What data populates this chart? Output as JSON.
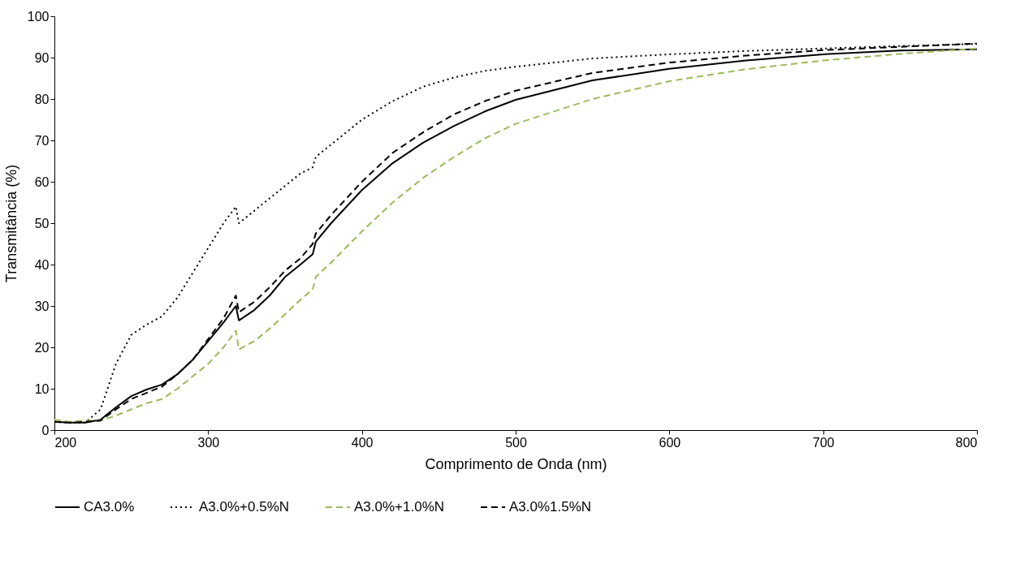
{
  "chart_data": {
    "type": "line",
    "xlabel": "Comprimento de Onda (nm)",
    "ylabel": "Transmitância (%)",
    "x": [
      200,
      210,
      220,
      230,
      240,
      250,
      260,
      270,
      280,
      290,
      300,
      310,
      318,
      320,
      330,
      340,
      350,
      360,
      368,
      370,
      380,
      400,
      420,
      440,
      460,
      480,
      500,
      550,
      600,
      650,
      700,
      750,
      800
    ],
    "series": [
      {
        "name": "CA3.0%",
        "color": "#000000",
        "line_style": "solid",
        "values": [
          2,
          1.8,
          1.8,
          2.5,
          5.5,
          8.2,
          9.8,
          11,
          13.5,
          17,
          21.5,
          26,
          30,
          26.5,
          29,
          32.5,
          37,
          40,
          42.5,
          45.5,
          50,
          58,
          64.5,
          69.5,
          73.5,
          77,
          79.8,
          84.5,
          87.3,
          89.3,
          90.8,
          91.7,
          92
        ]
      },
      {
        "name": "A3.0%+0.5%N",
        "color": "#000000",
        "line_style": "dotted",
        "values": [
          2,
          1.8,
          1.8,
          5,
          16,
          23,
          25.5,
          27.5,
          32,
          38,
          44,
          50,
          54,
          50,
          53,
          56,
          59,
          62,
          63.5,
          66,
          69,
          75,
          79.5,
          83,
          85.2,
          86.8,
          87.8,
          89.8,
          90.8,
          91.6,
          92.2,
          92.8,
          93.3
        ]
      },
      {
        "name": "A3.0%+1.0%N",
        "color": "#9bbb59",
        "line_style": "dashed",
        "values": [
          2.5,
          2,
          2.3,
          2.3,
          3.5,
          5,
          6.5,
          7.5,
          10,
          13,
          16,
          20,
          24,
          19.5,
          21.5,
          24.5,
          28,
          31.5,
          34,
          37,
          40.5,
          48,
          55,
          61,
          66,
          70.5,
          74,
          80,
          84.3,
          87.2,
          89.3,
          90.9,
          92.2
        ]
      },
      {
        "name": "A3.0%1.5%N",
        "color": "#000000",
        "line_style": "dashed",
        "values": [
          2,
          1.8,
          2,
          2.3,
          5,
          7.5,
          9,
          10.5,
          13.5,
          17,
          22,
          27,
          32.5,
          28.5,
          31,
          34.5,
          38.5,
          41.5,
          45,
          47.5,
          52,
          60,
          67,
          72,
          76.3,
          79.5,
          82,
          86.3,
          88.8,
          90.5,
          91.8,
          92.6,
          93.4
        ]
      }
    ],
    "xlim": [
      200,
      800
    ],
    "xticks": [
      200,
      300,
      400,
      500,
      600,
      700,
      800
    ],
    "ylim": [
      0,
      100
    ],
    "yticks": [
      0,
      10,
      20,
      30,
      40,
      50,
      60,
      70,
      80,
      90,
      100
    ],
    "grid": false,
    "legend": "bottom"
  }
}
